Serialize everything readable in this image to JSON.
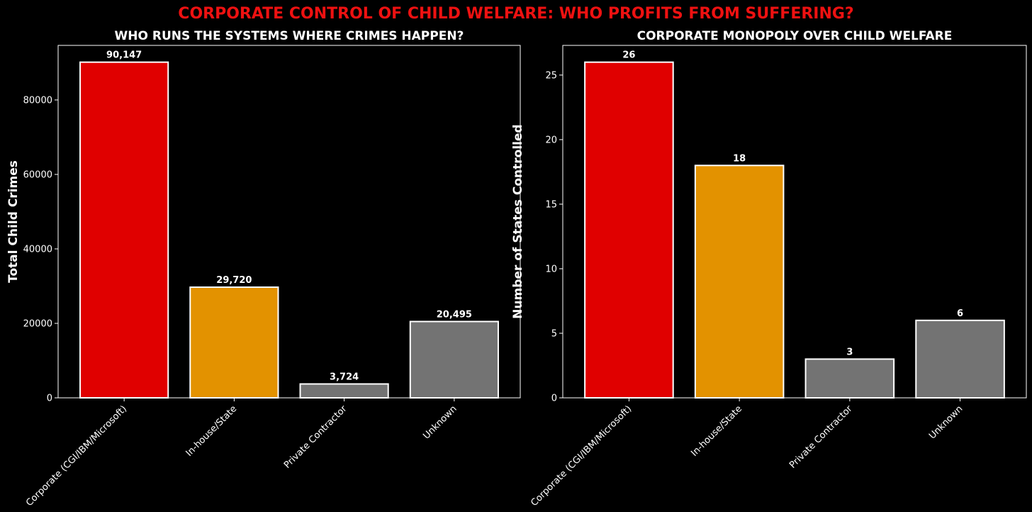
{
  "suptitle": "CORPORATE CONTROL OF CHILD WELFARE: WHO PROFITS FROM SUFFERING?",
  "colors": {
    "background": "#000000",
    "suptitle": "#ee1111",
    "corporate": "#e00000",
    "inhouse": "#e39200",
    "other": "#737373",
    "edge": "#ffffff",
    "text": "#ffffff"
  },
  "chart_data": [
    {
      "type": "bar",
      "title": "WHO RUNS THE SYSTEMS WHERE CRIMES HAPPEN?",
      "xlabel": "",
      "ylabel": "Total Child Crimes",
      "categories": [
        "Corporate (CGI/IBM/Microsoft)",
        "In-house/State",
        "Private Contractor",
        "Unknown"
      ],
      "values": [
        90147,
        29720,
        3724,
        20495
      ],
      "value_labels": [
        "90,147",
        "29,720",
        "3,724",
        "20,495"
      ],
      "bar_colors": [
        "corporate",
        "inhouse",
        "other",
        "other"
      ],
      "ylim": [
        0,
        94654
      ],
      "yticks": [
        0,
        20000,
        40000,
        60000,
        80000
      ],
      "ytick_labels": [
        "0",
        "20000",
        "40000",
        "60000",
        "80000"
      ],
      "grid": false,
      "legend": "none"
    },
    {
      "type": "bar",
      "title": "CORPORATE MONOPOLY OVER CHILD WELFARE",
      "xlabel": "",
      "ylabel": "Number of States Controlled",
      "categories": [
        "Corporate (CGI/IBM/Microsoft)",
        "In-house/State",
        "Private Contractor",
        "Unknown"
      ],
      "values": [
        26,
        18,
        3,
        6
      ],
      "value_labels": [
        "26",
        "18",
        "3",
        "6"
      ],
      "bar_colors": [
        "corporate",
        "inhouse",
        "other",
        "other"
      ],
      "ylim": [
        0,
        27.3
      ],
      "yticks": [
        0,
        5,
        10,
        15,
        20,
        25
      ],
      "ytick_labels": [
        "0",
        "5",
        "10",
        "15",
        "20",
        "25"
      ],
      "grid": false,
      "legend": "none"
    }
  ]
}
